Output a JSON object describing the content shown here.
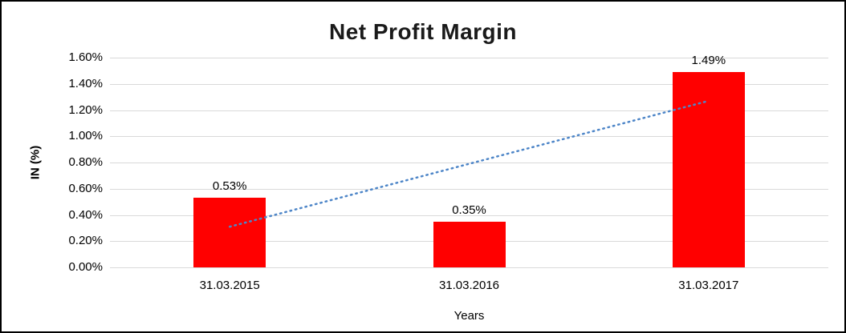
{
  "chart_data": {
    "type": "bar",
    "title": "Net Profit Margin",
    "xlabel": "Years",
    "ylabel": "IN (%)",
    "categories": [
      "31.03.2015",
      "31.03.2016",
      "31.03.2017"
    ],
    "values": [
      0.53,
      0.35,
      1.49
    ],
    "value_labels": [
      "0.53%",
      "0.35%",
      "1.49%"
    ],
    "ylim": [
      0,
      1.6
    ],
    "y_tick_step": 0.2,
    "y_tick_labels": [
      "0.00%",
      "0.20%",
      "0.40%",
      "0.60%",
      "0.80%",
      "1.00%",
      "1.20%",
      "1.40%",
      "1.60%"
    ],
    "grid": true,
    "legend": "none",
    "colors": {
      "bar": "#ff0000",
      "gridline": "#d9d9d9",
      "frame_border": "#000000",
      "trendline": "#4e86c8"
    },
    "trendline": {
      "style": "dotted",
      "color": "#4e86c8",
      "from": {
        "category_index": 0,
        "value": 0.31
      },
      "to": {
        "category_index": 2,
        "value": 1.27
      }
    }
  }
}
